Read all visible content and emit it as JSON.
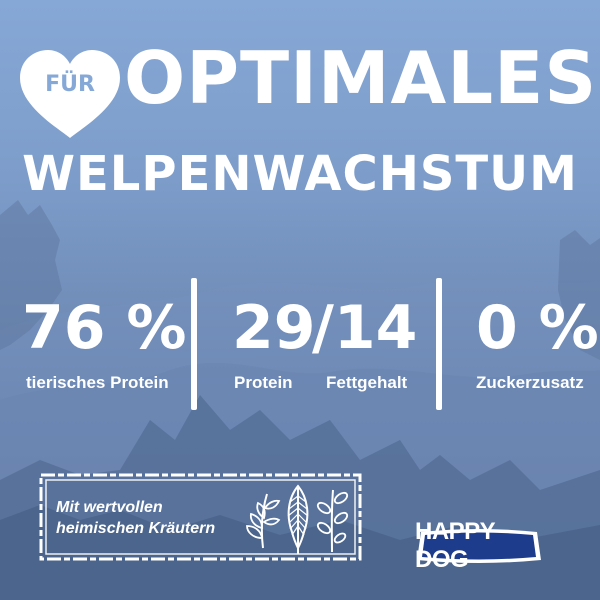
{
  "headline": {
    "heart_label": "FÜR",
    "line1": "OPTIMALES",
    "line2": "WELPENWACHSTUM"
  },
  "stats": [
    {
      "value": "76 %",
      "label": "tierisches Protein"
    },
    {
      "value": "29",
      "label": "Protein"
    },
    {
      "value": "/14",
      "label": "Fettgehalt"
    },
    {
      "value": "0 %",
      "label": "Zuckerzusatz"
    }
  ],
  "herbs": {
    "line1": "Mit wertvollen",
    "line2": "heimischen Kräutern",
    "icons": [
      "laurel-sprig-icon",
      "fern-leaf-icon",
      "olive-branch-icon"
    ]
  },
  "brand": {
    "logo_text": "HAPPY DOG",
    "colors": {
      "logo_blue": "#1e3c8c",
      "logo_white": "#ffffff",
      "sky": "#86a8d6",
      "text": "#ffffff"
    }
  }
}
